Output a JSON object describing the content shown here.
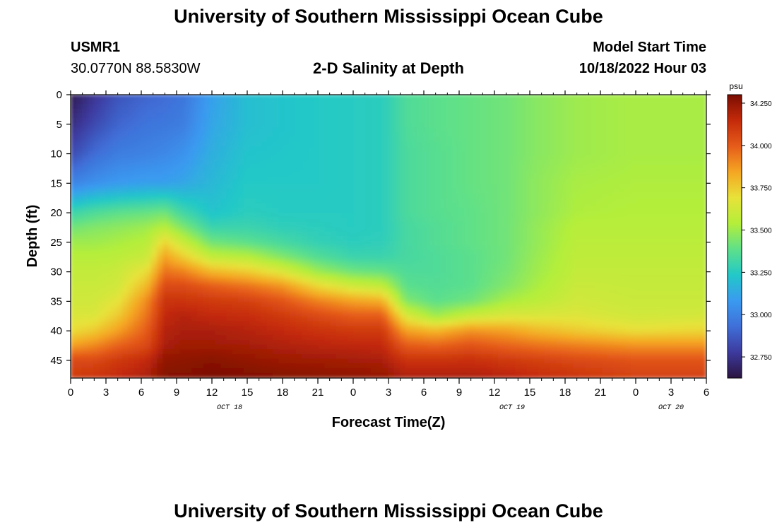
{
  "header": {
    "title": "University of Southern Mississippi Ocean Cube",
    "station_id": "USMR1",
    "coordinates": "30.0770N  88.5830W",
    "subtitle": "2-D Salinity at Depth",
    "model_start_label": "Model Start Time",
    "model_start_value": "10/18/2022 Hour 03"
  },
  "footer": {
    "title": "University of Southern Mississippi Ocean Cube"
  },
  "chart_data": {
    "type": "heatmap",
    "title": "2-D Salinity at Depth",
    "xlabel": "Forecast Time(Z)",
    "ylabel": "Depth (ft)",
    "x_ticks": [
      "0",
      "3",
      "6",
      "9",
      "12",
      "15",
      "18",
      "21",
      "0",
      "3",
      "6",
      "9",
      "12",
      "15",
      "18",
      "21",
      "0",
      "3",
      "6"
    ],
    "x_date_labels": [
      {
        "label": "OCT 18",
        "hour_index": 4.5
      },
      {
        "label": "OCT 19",
        "hour_index": 12.5
      },
      {
        "label": "OCT 20",
        "hour_index": 17
      }
    ],
    "y_ticks": [
      0,
      5,
      10,
      15,
      20,
      25,
      30,
      35,
      40,
      45
    ],
    "ylim": [
      0,
      48
    ],
    "y_inverted": true,
    "colorbar": {
      "unit": "psu",
      "range": [
        32.625,
        34.3
      ],
      "ticks": [
        "32.750",
        "33.000",
        "33.250",
        "33.500",
        "33.750",
        "34.000",
        "34.250"
      ],
      "colors": [
        "#2b1440",
        "#3d3a9e",
        "#3f6fd8",
        "#3a9af0",
        "#22c8c8",
        "#5ee08a",
        "#b4ee3a",
        "#e8e23a",
        "#f5a623",
        "#e65c1a",
        "#c42a0a",
        "#7a0d02"
      ]
    },
    "depths": [
      0,
      5,
      10,
      15,
      20,
      22.5,
      25,
      27.5,
      30,
      32.5,
      35,
      37.5,
      40,
      42.5,
      45,
      48
    ],
    "columns": [
      {
        "x": 0,
        "values": [
          32.65,
          32.72,
          32.82,
          33.0,
          33.3,
          33.42,
          33.5,
          33.55,
          33.58,
          33.6,
          33.62,
          33.65,
          33.7,
          33.85,
          34.05,
          34.1
        ]
      },
      {
        "x": 2,
        "values": [
          32.75,
          32.82,
          32.92,
          33.05,
          33.35,
          33.45,
          33.5,
          33.55,
          33.58,
          33.6,
          33.62,
          33.65,
          33.75,
          33.9,
          34.05,
          34.12
        ]
      },
      {
        "x": 4,
        "values": [
          32.85,
          32.9,
          32.98,
          33.08,
          33.38,
          33.47,
          33.52,
          33.56,
          33.6,
          33.62,
          33.68,
          33.75,
          33.85,
          33.98,
          34.1,
          34.15
        ]
      },
      {
        "x": 6.5,
        "values": [
          32.9,
          32.95,
          33.0,
          33.1,
          33.4,
          33.5,
          33.55,
          33.6,
          33.7,
          33.8,
          33.9,
          33.95,
          34.0,
          34.05,
          34.15,
          34.2
        ]
      },
      {
        "x": 8,
        "values": [
          32.92,
          32.96,
          33.02,
          33.1,
          33.42,
          33.55,
          33.72,
          33.85,
          33.95,
          34.05,
          34.12,
          34.15,
          34.18,
          34.2,
          34.25,
          34.28
        ]
      },
      {
        "x": 9.5,
        "values": [
          32.95,
          32.98,
          33.05,
          33.12,
          33.32,
          33.45,
          33.6,
          33.75,
          33.92,
          34.05,
          34.12,
          34.18,
          34.2,
          34.22,
          34.26,
          34.28
        ]
      },
      {
        "x": 12,
        "values": [
          33.1,
          33.12,
          33.15,
          33.18,
          33.22,
          33.3,
          33.42,
          33.58,
          33.8,
          34.0,
          34.1,
          34.15,
          34.2,
          34.22,
          34.27,
          34.3
        ]
      },
      {
        "x": 15,
        "values": [
          33.2,
          33.2,
          33.22,
          33.24,
          33.26,
          33.3,
          33.38,
          33.55,
          33.75,
          33.95,
          34.08,
          34.14,
          34.18,
          34.21,
          34.25,
          34.29
        ]
      },
      {
        "x": 18,
        "values": [
          33.22,
          33.22,
          33.23,
          33.24,
          33.25,
          33.27,
          33.33,
          33.45,
          33.65,
          33.88,
          34.02,
          34.1,
          34.15,
          34.19,
          34.23,
          34.28
        ]
      },
      {
        "x": 21,
        "values": [
          33.24,
          33.24,
          33.24,
          33.24,
          33.25,
          33.26,
          33.28,
          33.36,
          33.5,
          33.72,
          33.92,
          34.05,
          34.12,
          34.17,
          34.22,
          34.27
        ]
      },
      {
        "x": 24,
        "values": [
          33.25,
          33.25,
          33.25,
          33.25,
          33.25,
          33.25,
          33.26,
          33.3,
          33.42,
          33.62,
          33.85,
          34.0,
          34.1,
          34.16,
          34.21,
          34.26
        ]
      },
      {
        "x": 26.5,
        "values": [
          33.26,
          33.26,
          33.26,
          33.26,
          33.26,
          33.26,
          33.27,
          33.3,
          33.4,
          33.58,
          33.82,
          34.0,
          34.1,
          34.15,
          34.2,
          34.25
        ]
      },
      {
        "x": 28.5,
        "values": [
          33.35,
          33.35,
          33.34,
          33.34,
          33.34,
          33.33,
          33.33,
          33.33,
          33.35,
          33.38,
          33.45,
          33.65,
          33.85,
          34.0,
          34.12,
          34.2
        ]
      },
      {
        "x": 31,
        "values": [
          33.38,
          33.38,
          33.37,
          33.37,
          33.37,
          33.36,
          33.36,
          33.35,
          33.35,
          33.36,
          33.38,
          33.5,
          33.8,
          33.98,
          34.12,
          34.2
        ]
      },
      {
        "x": 34,
        "values": [
          33.4,
          33.4,
          33.4,
          33.4,
          33.39,
          33.39,
          33.39,
          33.38,
          33.38,
          33.38,
          33.42,
          33.6,
          33.88,
          34.02,
          34.13,
          34.2
        ]
      },
      {
        "x": 37,
        "values": [
          33.42,
          33.42,
          33.42,
          33.42,
          33.42,
          33.42,
          33.42,
          33.42,
          33.43,
          33.45,
          33.52,
          33.65,
          33.85,
          33.98,
          34.1,
          34.18
        ]
      },
      {
        "x": 39.5,
        "values": [
          33.46,
          33.46,
          33.46,
          33.47,
          33.47,
          33.48,
          33.48,
          33.49,
          33.5,
          33.52,
          33.56,
          33.65,
          33.8,
          33.95,
          34.08,
          34.15
        ]
      },
      {
        "x": 43,
        "values": [
          33.5,
          33.5,
          33.5,
          33.52,
          33.53,
          33.55,
          33.56,
          33.57,
          33.58,
          33.6,
          33.62,
          33.66,
          33.75,
          33.92,
          34.05,
          34.12
        ]
      },
      {
        "x": 48,
        "values": [
          33.52,
          33.52,
          33.52,
          33.53,
          33.54,
          33.55,
          33.56,
          33.57,
          33.58,
          33.59,
          33.6,
          33.62,
          33.7,
          33.88,
          34.02,
          34.08
        ]
      },
      {
        "x": 54,
        "values": [
          33.52,
          33.52,
          33.52,
          33.53,
          33.54,
          33.55,
          33.56,
          33.57,
          33.58,
          33.59,
          33.6,
          33.63,
          33.72,
          33.88,
          34.02,
          34.08
        ]
      }
    ]
  }
}
